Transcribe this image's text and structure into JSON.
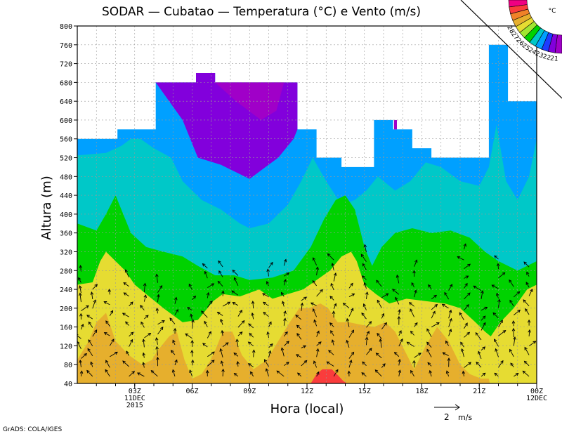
{
  "chart_data": {
    "type": "heatmap",
    "title": "SODAR  —  Cubatao  —  Temperatura (°C) e Vento (m/s)",
    "xlabel": "Hora (local)",
    "ylabel": "Altura (m)",
    "ylim": [
      40,
      800
    ],
    "xlim": [
      0,
      24
    ],
    "y_ticks": [
      40,
      80,
      120,
      160,
      200,
      240,
      280,
      320,
      360,
      400,
      440,
      480,
      520,
      560,
      600,
      640,
      680,
      720,
      760,
      800
    ],
    "x_ticks": [
      {
        "x": 3,
        "label": "03Z",
        "sub1": "11DEC",
        "sub2": "2015"
      },
      {
        "x": 6,
        "label": "06Z",
        "sub1": "",
        "sub2": ""
      },
      {
        "x": 9,
        "label": "09Z",
        "sub1": "",
        "sub2": ""
      },
      {
        "x": 12,
        "label": "12Z",
        "sub1": "",
        "sub2": ""
      },
      {
        "x": 15,
        "label": "15Z",
        "sub1": "",
        "sub2": ""
      },
      {
        "x": 18,
        "label": "18Z",
        "sub1": "",
        "sub2": ""
      },
      {
        "x": 21,
        "label": "21Z",
        "sub1": "",
        "sub2": ""
      },
      {
        "x": 24,
        "label": "00Z",
        "sub1": "12DEC",
        "sub2": ""
      }
    ],
    "grid": true,
    "legend": {
      "position": "top-right",
      "unit": "°C",
      "levels": [
        {
          "label": "21",
          "color": "#a000c8"
        },
        {
          "label": "22",
          "color": "#8200dc"
        },
        {
          "label": "23",
          "color": "#1e3cff"
        },
        {
          "label": "24",
          "color": "#00a0ff"
        },
        {
          "label": "25",
          "color": "#00c8c8"
        },
        {
          "label": "26",
          "color": "#00d200"
        },
        {
          "label": "27",
          "color": "#a0e632"
        },
        {
          "label": "28",
          "color": "#e6dc32"
        },
        {
          "label": "",
          "color": "#e6af2d"
        },
        {
          "label": "",
          "color": "#f08228"
        },
        {
          "label": "",
          "color": "#fa3c3c"
        },
        {
          "label": "",
          "color": "#f00082"
        }
      ]
    },
    "bands": [
      {
        "level": "≥21 (top)",
        "color": "#8200dc"
      },
      {
        "level": "23–24",
        "color": "#00a0ff"
      },
      {
        "level": "24–25",
        "color": "#00c8c8"
      },
      {
        "level": "25–26",
        "color": "#00d200"
      },
      {
        "level": "26–27",
        "color": "#e6dc32"
      },
      {
        "level": "27–28",
        "color": "#e6af2d"
      },
      {
        "level": "≥28",
        "color": "#fa3c3c"
      }
    ],
    "wind_scale": {
      "value": "2",
      "unit": "m/s"
    }
  },
  "footer": {
    "credit": "GrADS: COLA/IGES"
  }
}
